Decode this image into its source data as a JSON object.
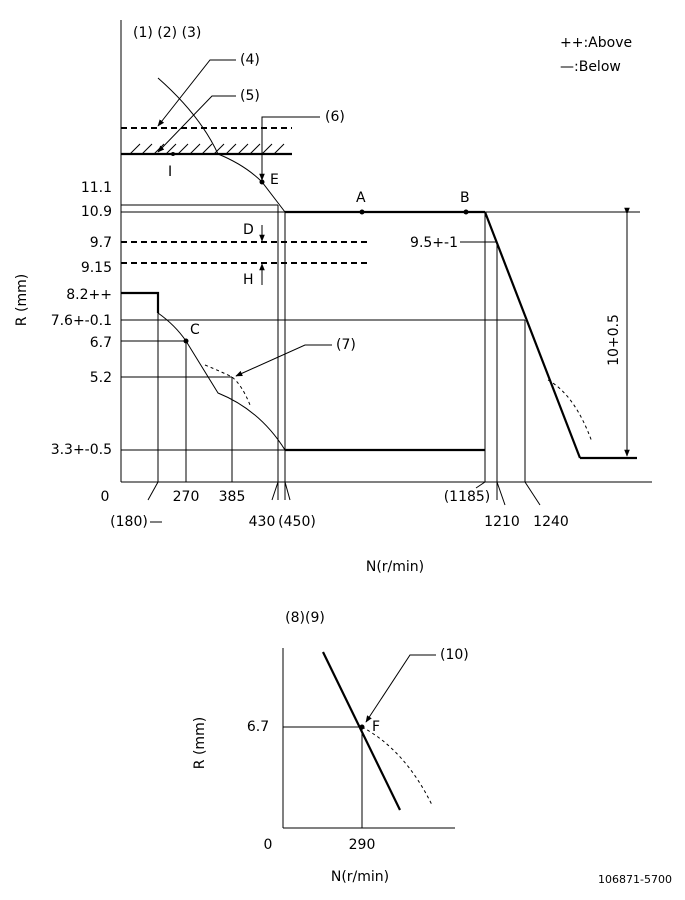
{
  "main_diagram": {
    "header": "(1) (2) (3)",
    "legend": [
      "++:Above",
      "—:Below"
    ],
    "callouts": [
      "(4)",
      "(5)",
      "(6)",
      "(7)"
    ],
    "points": [
      "I",
      "E",
      "A",
      "B",
      "D",
      "H",
      "C"
    ],
    "y_axis_label": "R (mm)",
    "y_labels": [
      "11.1",
      "10.9",
      "9.7",
      "9.15",
      "8.2++",
      "7.6+-0.1",
      "6.7",
      "5.2",
      "3.3+-0.5"
    ],
    "right_labels": [
      "9.5+-1",
      "10+0.5"
    ],
    "x_labels": [
      "0",
      "270",
      "385",
      "(180)",
      "430",
      "(450)",
      "(1185)",
      "1210",
      "1240"
    ],
    "x_axis_label": "N(r/min)"
  },
  "sub_diagram": {
    "header": "(8)(9)",
    "callout": "(10)",
    "point": "F",
    "y_axis_label": "R (mm)",
    "y_label": "6.7",
    "x_labels": [
      "0",
      "290"
    ],
    "x_axis_label": "N(r/min)"
  },
  "footer": "106871-5700"
}
